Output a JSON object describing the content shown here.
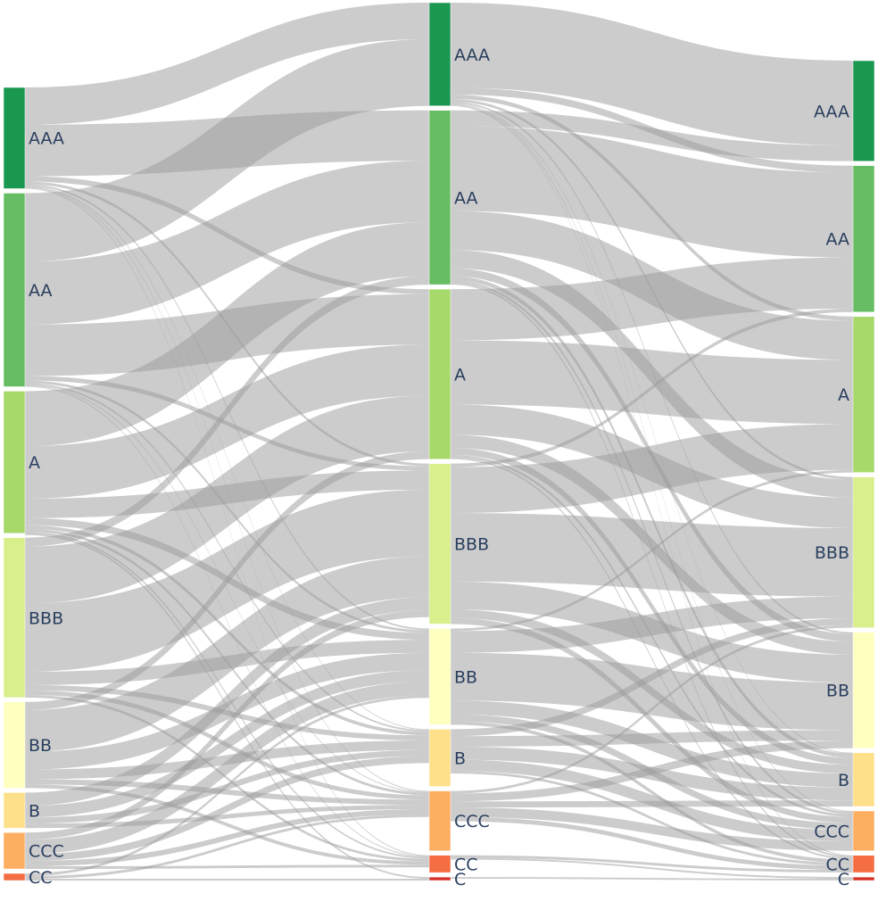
{
  "chart_data": {
    "type": "sankey",
    "columns": [
      {
        "nodes": [
          {
            "label": "AAA",
            "value": 11.4,
            "color": "#1a9850"
          },
          {
            "label": "AA",
            "value": 21.8,
            "color": "#66bd63"
          },
          {
            "label": "A",
            "value": 16.0,
            "color": "#a6d96a"
          },
          {
            "label": "BBB",
            "value": 18.0,
            "color": "#d9ef8b"
          },
          {
            "label": "BB",
            "value": 9.7,
            "color": "#ffffbf"
          },
          {
            "label": "B",
            "value": 4.0,
            "color": "#fee08b"
          },
          {
            "label": "CCC",
            "value": 4.1,
            "color": "#fdae61"
          },
          {
            "label": "CC",
            "value": 0.8,
            "color": "#f46d43"
          }
        ]
      },
      {
        "nodes": [
          {
            "label": "AAA",
            "value": 11.9,
            "color": "#1a9850"
          },
          {
            "label": "AA",
            "value": 20.1,
            "color": "#66bd63"
          },
          {
            "label": "A",
            "value": 19.6,
            "color": "#a6d96a"
          },
          {
            "label": "BBB",
            "value": 18.5,
            "color": "#d9ef8b"
          },
          {
            "label": "BB",
            "value": 11.1,
            "color": "#ffffbf"
          },
          {
            "label": "B",
            "value": 6.6,
            "color": "#fee08b"
          },
          {
            "label": "CCC",
            "value": 6.9,
            "color": "#fdae61"
          },
          {
            "label": "CC",
            "value": 2.0,
            "color": "#f46d43"
          },
          {
            "label": "C",
            "value": 0.4,
            "color": "#d73027"
          }
        ]
      },
      {
        "nodes": [
          {
            "label": "AAA",
            "value": 11.6,
            "color": "#1a9850"
          },
          {
            "label": "AA",
            "value": 16.9,
            "color": "#66bd63"
          },
          {
            "label": "A",
            "value": 18.0,
            "color": "#a6d96a"
          },
          {
            "label": "BBB",
            "value": 17.4,
            "color": "#d9ef8b"
          },
          {
            "label": "BB",
            "value": 13.4,
            "color": "#ffffbf"
          },
          {
            "label": "B",
            "value": 6.2,
            "color": "#fee08b"
          },
          {
            "label": "CCC",
            "value": 4.6,
            "color": "#fdae61"
          },
          {
            "label": "CC",
            "value": 2.0,
            "color": "#f46d43"
          },
          {
            "label": "C",
            "value": 0.4,
            "color": "#d73027"
          }
        ]
      }
    ],
    "links": [
      {
        "from": [
          0,
          "AAA"
        ],
        "to": [
          1,
          "AAA"
        ],
        "value": 4.2
      },
      {
        "from": [
          0,
          "AAA"
        ],
        "to": [
          1,
          "AA"
        ],
        "value": 5.8
      },
      {
        "from": [
          0,
          "AAA"
        ],
        "to": [
          1,
          "A"
        ],
        "value": 0.6
      },
      {
        "from": [
          0,
          "AAA"
        ],
        "to": [
          1,
          "BBB"
        ],
        "value": 0.3
      },
      {
        "from": [
          0,
          "AAA"
        ],
        "to": [
          1,
          "BB"
        ],
        "value": 0.2
      },
      {
        "from": [
          0,
          "AAA"
        ],
        "to": [
          1,
          "B"
        ],
        "value": 0.1
      },
      {
        "from": [
          0,
          "AAA"
        ],
        "to": [
          1,
          "CCC"
        ],
        "value": 0.1
      },
      {
        "from": [
          0,
          "AAA"
        ],
        "to": [
          1,
          "CC"
        ],
        "value": 0.1
      },
      {
        "from": [
          0,
          "AA"
        ],
        "to": [
          1,
          "AAA"
        ],
        "value": 7.7
      },
      {
        "from": [
          0,
          "AA"
        ],
        "to": [
          1,
          "AA"
        ],
        "value": 7.1
      },
      {
        "from": [
          0,
          "AA"
        ],
        "to": [
          1,
          "A"
        ],
        "value": 5.8
      },
      {
        "from": [
          0,
          "AA"
        ],
        "to": [
          1,
          "BBB"
        ],
        "value": 0.5
      },
      {
        "from": [
          0,
          "AA"
        ],
        "to": [
          1,
          "BB"
        ],
        "value": 0.3
      },
      {
        "from": [
          0,
          "AA"
        ],
        "to": [
          1,
          "B"
        ],
        "value": 0.2
      },
      {
        "from": [
          0,
          "AA"
        ],
        "to": [
          1,
          "CCC"
        ],
        "value": 0.1
      },
      {
        "from": [
          0,
          "AA"
        ],
        "to": [
          1,
          "CC"
        ],
        "value": 0.1
      },
      {
        "from": [
          0,
          "A"
        ],
        "to": [
          1,
          "AA"
        ],
        "value": 6.2
      },
      {
        "from": [
          0,
          "A"
        ],
        "to": [
          1,
          "A"
        ],
        "value": 5.9
      },
      {
        "from": [
          0,
          "A"
        ],
        "to": [
          1,
          "BBB"
        ],
        "value": 2.2
      },
      {
        "from": [
          0,
          "A"
        ],
        "to": [
          1,
          "BB"
        ],
        "value": 0.8
      },
      {
        "from": [
          0,
          "A"
        ],
        "to": [
          1,
          "B"
        ],
        "value": 0.4
      },
      {
        "from": [
          0,
          "A"
        ],
        "to": [
          1,
          "CCC"
        ],
        "value": 0.3
      },
      {
        "from": [
          0,
          "A"
        ],
        "to": [
          1,
          "CC"
        ],
        "value": 0.2
      },
      {
        "from": [
          0,
          "A"
        ],
        "to": [
          1,
          "C"
        ],
        "value": 0.2
      },
      {
        "from": [
          0,
          "BBB"
        ],
        "to": [
          1,
          "AA"
        ],
        "value": 1.0
      },
      {
        "from": [
          0,
          "BBB"
        ],
        "to": [
          1,
          "A"
        ],
        "value": 6.4
      },
      {
        "from": [
          0,
          "BBB"
        ],
        "to": [
          1,
          "BBB"
        ],
        "value": 7.7
      },
      {
        "from": [
          0,
          "BBB"
        ],
        "to": [
          1,
          "BB"
        ],
        "value": 1.5
      },
      {
        "from": [
          0,
          "BBB"
        ],
        "to": [
          1,
          "B"
        ],
        "value": 0.6
      },
      {
        "from": [
          0,
          "BBB"
        ],
        "to": [
          1,
          "CCC"
        ],
        "value": 0.5
      },
      {
        "from": [
          0,
          "BBB"
        ],
        "to": [
          1,
          "CC"
        ],
        "value": 0.3
      },
      {
        "from": [
          0,
          "BB"
        ],
        "to": [
          1,
          "A"
        ],
        "value": 0.9
      },
      {
        "from": [
          0,
          "BB"
        ],
        "to": [
          1,
          "BBB"
        ],
        "value": 4.7
      },
      {
        "from": [
          0,
          "BB"
        ],
        "to": [
          1,
          "BB"
        ],
        "value": 2.0
      },
      {
        "from": [
          0,
          "BB"
        ],
        "to": [
          1,
          "B"
        ],
        "value": 1.1
      },
      {
        "from": [
          0,
          "BB"
        ],
        "to": [
          1,
          "CCC"
        ],
        "value": 0.6
      },
      {
        "from": [
          0,
          "BB"
        ],
        "to": [
          1,
          "CC"
        ],
        "value": 0.4
      },
      {
        "from": [
          0,
          "B"
        ],
        "to": [
          1,
          "BBB"
        ],
        "value": 1.5
      },
      {
        "from": [
          0,
          "B"
        ],
        "to": [
          1,
          "BB"
        ],
        "value": 1.3
      },
      {
        "from": [
          0,
          "B"
        ],
        "to": [
          1,
          "B"
        ],
        "value": 0.7
      },
      {
        "from": [
          0,
          "B"
        ],
        "to": [
          1,
          "CCC"
        ],
        "value": 0.5
      },
      {
        "from": [
          0,
          "CCC"
        ],
        "to": [
          1,
          "BBB"
        ],
        "value": 0.8
      },
      {
        "from": [
          0,
          "CCC"
        ],
        "to": [
          1,
          "BB"
        ],
        "value": 1.6
      },
      {
        "from": [
          0,
          "CCC"
        ],
        "to": [
          1,
          "B"
        ],
        "value": 0.8
      },
      {
        "from": [
          0,
          "CCC"
        ],
        "to": [
          1,
          "CCC"
        ],
        "value": 0.6
      },
      {
        "from": [
          0,
          "CCC"
        ],
        "to": [
          1,
          "CC"
        ],
        "value": 0.3
      },
      {
        "from": [
          0,
          "CC"
        ],
        "to": [
          1,
          "BB"
        ],
        "value": 0.3
      },
      {
        "from": [
          0,
          "CC"
        ],
        "to": [
          1,
          "CCC"
        ],
        "value": 0.3
      },
      {
        "from": [
          0,
          "CC"
        ],
        "to": [
          1,
          "C"
        ],
        "value": 0.2
      },
      {
        "from": [
          1,
          "AAA"
        ],
        "to": [
          2,
          "AAA"
        ],
        "value": 9.8
      },
      {
        "from": [
          1,
          "AAA"
        ],
        "to": [
          2,
          "AA"
        ],
        "value": 0.8
      },
      {
        "from": [
          1,
          "AAA"
        ],
        "to": [
          2,
          "A"
        ],
        "value": 0.5
      },
      {
        "from": [
          1,
          "AAA"
        ],
        "to": [
          2,
          "BBB"
        ],
        "value": 0.3
      },
      {
        "from": [
          1,
          "AAA"
        ],
        "to": [
          2,
          "BB"
        ],
        "value": 0.2
      },
      {
        "from": [
          1,
          "AAA"
        ],
        "to": [
          2,
          "B"
        ],
        "value": 0.1
      },
      {
        "from": [
          1,
          "AAA"
        ],
        "to": [
          2,
          "CCC"
        ],
        "value": 0.1
      },
      {
        "from": [
          1,
          "AAA"
        ],
        "to": [
          2,
          "CC"
        ],
        "value": 0.1
      },
      {
        "from": [
          1,
          "AA"
        ],
        "to": [
          2,
          "AAA"
        ],
        "value": 1.8
      },
      {
        "from": [
          1,
          "AA"
        ],
        "to": [
          2,
          "AA"
        ],
        "value": 9.8
      },
      {
        "from": [
          1,
          "AA"
        ],
        "to": [
          2,
          "A"
        ],
        "value": 4.5
      },
      {
        "from": [
          1,
          "AA"
        ],
        "to": [
          2,
          "BBB"
        ],
        "value": 2.1
      },
      {
        "from": [
          1,
          "AA"
        ],
        "to": [
          2,
          "BB"
        ],
        "value": 0.9
      },
      {
        "from": [
          1,
          "AA"
        ],
        "to": [
          2,
          "B"
        ],
        "value": 0.5
      },
      {
        "from": [
          1,
          "AA"
        ],
        "to": [
          2,
          "CCC"
        ],
        "value": 0.3
      },
      {
        "from": [
          1,
          "AA"
        ],
        "to": [
          2,
          "CC"
        ],
        "value": 0.2
      },
      {
        "from": [
          1,
          "A"
        ],
        "to": [
          2,
          "AA"
        ],
        "value": 5.9
      },
      {
        "from": [
          1,
          "A"
        ],
        "to": [
          2,
          "A"
        ],
        "value": 7.4
      },
      {
        "from": [
          1,
          "A"
        ],
        "to": [
          2,
          "BBB"
        ],
        "value": 3.5
      },
      {
        "from": [
          1,
          "A"
        ],
        "to": [
          2,
          "BB"
        ],
        "value": 1.5
      },
      {
        "from": [
          1,
          "A"
        ],
        "to": [
          2,
          "B"
        ],
        "value": 0.8
      },
      {
        "from": [
          1,
          "A"
        ],
        "to": [
          2,
          "CCC"
        ],
        "value": 0.3
      },
      {
        "from": [
          1,
          "A"
        ],
        "to": [
          2,
          "CC"
        ],
        "value": 0.2
      },
      {
        "from": [
          1,
          "BBB"
        ],
        "to": [
          2,
          "AA"
        ],
        "value": 0.4
      },
      {
        "from": [
          1,
          "BBB"
        ],
        "to": [
          2,
          "A"
        ],
        "value": 5.3
      },
      {
        "from": [
          1,
          "BBB"
        ],
        "to": [
          2,
          "BBB"
        ],
        "value": 7.9
      },
      {
        "from": [
          1,
          "BBB"
        ],
        "to": [
          2,
          "BB"
        ],
        "value": 3.2
      },
      {
        "from": [
          1,
          "BBB"
        ],
        "to": [
          2,
          "B"
        ],
        "value": 1.0
      },
      {
        "from": [
          1,
          "BBB"
        ],
        "to": [
          2,
          "CCC"
        ],
        "value": 0.7
      },
      {
        "from": [
          1,
          "BB"
        ],
        "to": [
          2,
          "A"
        ],
        "value": 0.3
      },
      {
        "from": [
          1,
          "BB"
        ],
        "to": [
          2,
          "BBB"
        ],
        "value": 2.5
      },
      {
        "from": [
          1,
          "BB"
        ],
        "to": [
          2,
          "BB"
        ],
        "value": 5.5
      },
      {
        "from": [
          1,
          "BB"
        ],
        "to": [
          2,
          "B"
        ],
        "value": 1.6
      },
      {
        "from": [
          1,
          "BB"
        ],
        "to": [
          2,
          "CCC"
        ],
        "value": 0.8
      },
      {
        "from": [
          1,
          "BB"
        ],
        "to": [
          2,
          "CC"
        ],
        "value": 0.4
      },
      {
        "from": [
          1,
          "B"
        ],
        "to": [
          2,
          "BBB"
        ],
        "value": 0.8
      },
      {
        "from": [
          1,
          "B"
        ],
        "to": [
          2,
          "BB"
        ],
        "value": 1.2
      },
      {
        "from": [
          1,
          "B"
        ],
        "to": [
          2,
          "B"
        ],
        "value": 1.5
      },
      {
        "from": [
          1,
          "B"
        ],
        "to": [
          2,
          "CCC"
        ],
        "value": 1.3
      },
      {
        "from": [
          1,
          "B"
        ],
        "to": [
          2,
          "CC"
        ],
        "value": 0.3
      },
      {
        "from": [
          1,
          "CCC"
        ],
        "to": [
          2,
          "BBB"
        ],
        "value": 0.3
      },
      {
        "from": [
          1,
          "CCC"
        ],
        "to": [
          2,
          "BB"
        ],
        "value": 0.9
      },
      {
        "from": [
          1,
          "CCC"
        ],
        "to": [
          2,
          "B"
        ],
        "value": 0.7
      },
      {
        "from": [
          1,
          "CCC"
        ],
        "to": [
          2,
          "CCC"
        ],
        "value": 1.1
      },
      {
        "from": [
          1,
          "CCC"
        ],
        "to": [
          2,
          "CC"
        ],
        "value": 0.5
      },
      {
        "from": [
          1,
          "CC"
        ],
        "to": [
          2,
          "CC"
        ],
        "value": 0.3
      },
      {
        "from": [
          1,
          "CC"
        ],
        "to": [
          2,
          "C"
        ],
        "value": 0.2
      },
      {
        "from": [
          1,
          "C"
        ],
        "to": [
          2,
          "C"
        ],
        "value": 0.2
      }
    ]
  }
}
